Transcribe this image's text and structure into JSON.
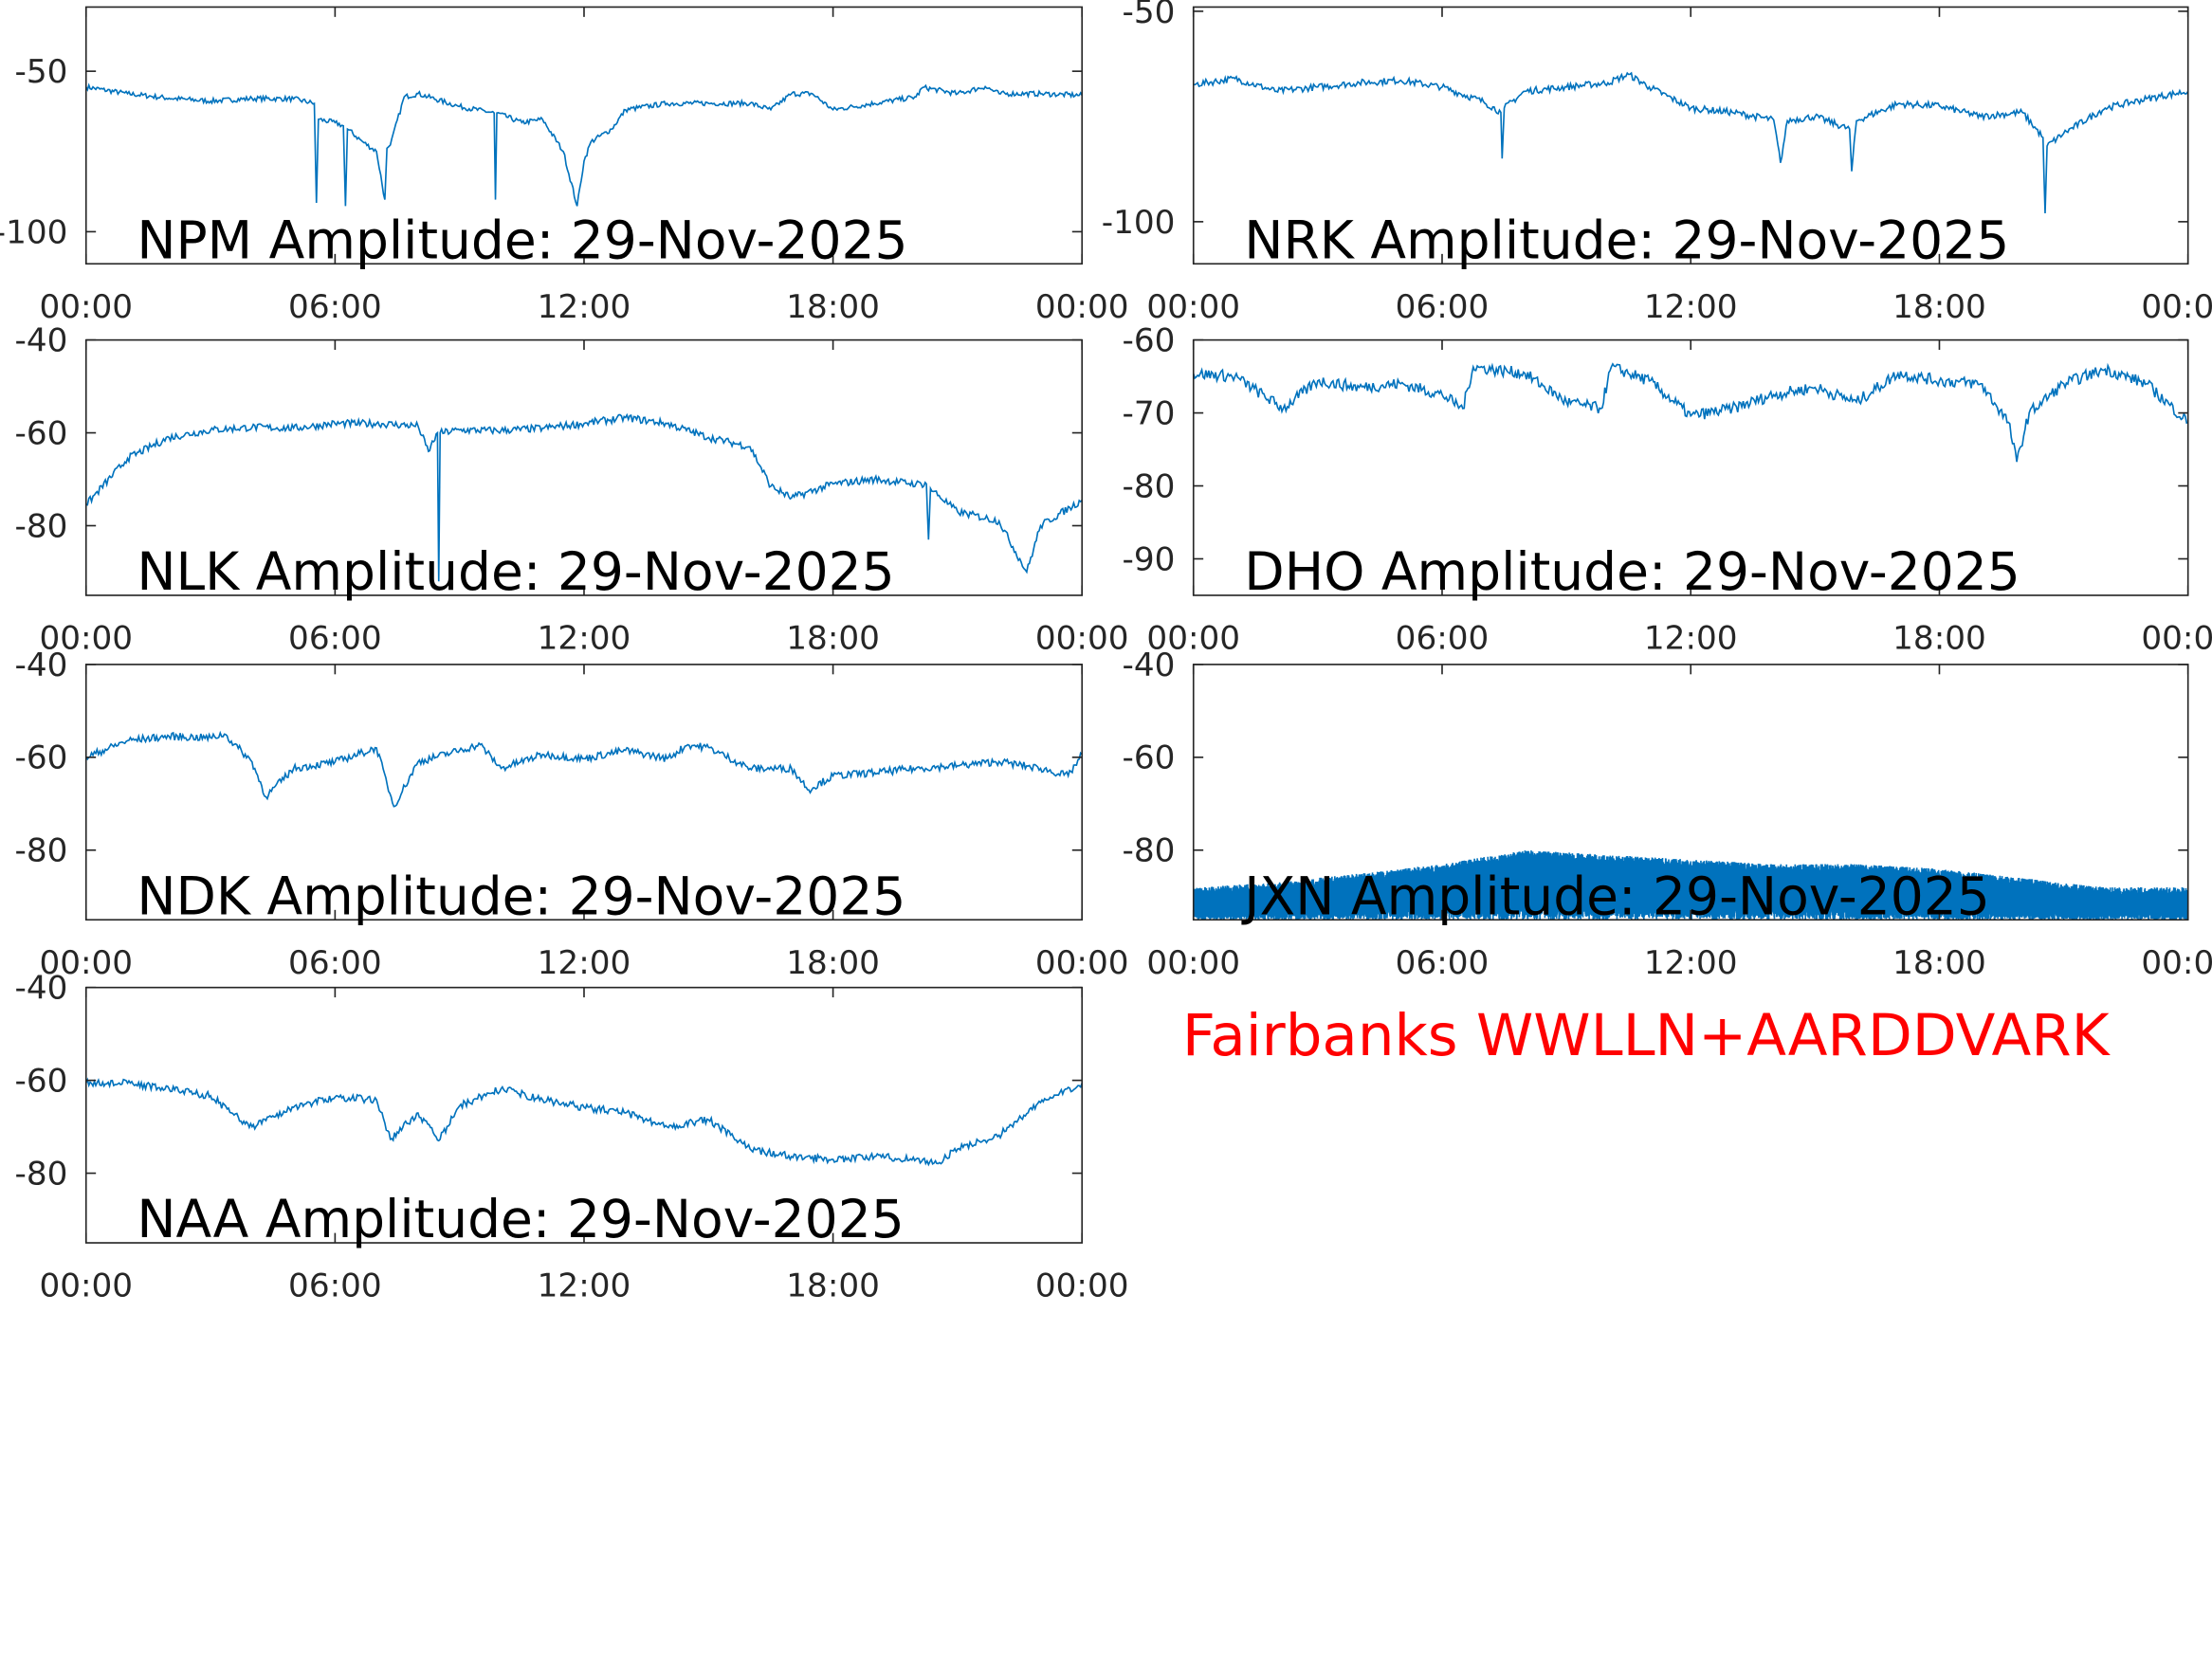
{
  "caption": {
    "text": "Fairbanks WWLLN+AARDDVARK",
    "color": "#ff0000"
  },
  "line_color": "#0072bd",
  "chart_data": [
    {
      "type": "line",
      "title": "NPM Amplitude: 29-Nov-2025",
      "xlim": [
        "00:00",
        "24:00"
      ],
      "ylim": [
        -110,
        -30
      ],
      "xticks": [
        "00:00",
        "06:00",
        "12:00",
        "18:00",
        "00:00"
      ],
      "yticks": [
        {
          "value": -50,
          "label": "-50"
        },
        {
          "value": -100,
          "label": "-100"
        }
      ],
      "x": [
        "00:00",
        "01:00",
        "02:00",
        "03:00",
        "04:00",
        "05:00",
        "05:30",
        "05:33",
        "05:36",
        "06:00",
        "06:12",
        "06:15",
        "06:18",
        "06:40",
        "07:00",
        "07:12",
        "07:15",
        "07:20",
        "07:40",
        "08:00",
        "09:00",
        "09:50",
        "09:52",
        "09:54",
        "10:30",
        "11:00",
        "11:30",
        "11:50",
        "12:00",
        "12:10",
        "12:40",
        "13:00",
        "14:00",
        "15:00",
        "16:00",
        "16:30",
        "17:00",
        "17:30",
        "18:00",
        "19:00",
        "20:00",
        "20:10",
        "21:00",
        "21:40",
        "22:00",
        "23:00",
        "24:00"
      ],
      "y": [
        -54.9,
        -57,
        -58.4,
        -59.3,
        -58.5,
        -58.6,
        -60,
        -91,
        -65,
        -66,
        -67,
        -92,
        -68,
        -72,
        -75,
        -90,
        -74,
        -73,
        -58,
        -57,
        -61,
        -63,
        -90,
        -63,
        -66,
        -65,
        -75,
        -92,
        -78,
        -72,
        -68,
        -62,
        -60,
        -60,
        -60,
        -62,
        -57,
        -57,
        -62,
        -60,
        -58,
        -55,
        -57,
        -54.8,
        -57,
        -57,
        -57.5
      ]
    },
    {
      "type": "line",
      "title": "NRK Amplitude: 29-Nov-2025",
      "xlim": [
        "00:00",
        "24:00"
      ],
      "ylim": [
        -110,
        -49
      ],
      "xticks": [
        "00:00",
        "06:00",
        "12:00",
        "18:00",
        "00:00"
      ],
      "yticks": [
        {
          "value": -50,
          "label": "-50"
        },
        {
          "value": -100,
          "label": "-100"
        }
      ],
      "x": [
        "00:00",
        "01:00",
        "02:00",
        "03:00",
        "04:00",
        "05:00",
        "06:00",
        "07:00",
        "07:25",
        "07:27",
        "07:30",
        "08:00",
        "09:00",
        "10:00",
        "10:30",
        "11:00",
        "12:00",
        "13:00",
        "14:00",
        "14:10",
        "14:20",
        "15:00",
        "15:50",
        "15:53",
        "16:00",
        "17:00",
        "18:00",
        "19:00",
        "20:00",
        "20:30",
        "20:33",
        "20:36",
        "21:00",
        "22:00",
        "23:00",
        "24:00"
      ],
      "y": [
        -67.4,
        -66,
        -69,
        -68,
        -67,
        -66.4,
        -68,
        -71.5,
        -74,
        -85,
        -73,
        -69,
        -68,
        -67,
        -65,
        -68,
        -73,
        -74,
        -75.8,
        -86,
        -76,
        -75,
        -78,
        -88,
        -76,
        -72,
        -72.5,
        -75,
        -74,
        -80,
        -98,
        -82,
        -79,
        -73,
        -70.8,
        -69
      ]
    },
    {
      "type": "line",
      "title": "NLK Amplitude: 29-Nov-2025",
      "xlim": [
        "00:00",
        "24:00"
      ],
      "ylim": [
        -95,
        -40
      ],
      "xticks": [
        "00:00",
        "06:00",
        "12:00",
        "18:00",
        "00:00"
      ],
      "yticks": [
        {
          "value": -40,
          "label": "-40"
        },
        {
          "value": -60,
          "label": "-60"
        },
        {
          "value": -80,
          "label": "-80"
        }
      ],
      "x": [
        "00:00",
        "01:00",
        "02:00",
        "03:00",
        "04:00",
        "05:00",
        "06:00",
        "07:00",
        "08:00",
        "08:15",
        "08:28",
        "08:30",
        "08:32",
        "09:00",
        "10:00",
        "11:00",
        "12:00",
        "13:00",
        "14:00",
        "15:00",
        "15:30",
        "16:00",
        "16:30",
        "17:00",
        "18:00",
        "19:00",
        "20:00",
        "20:15",
        "20:18",
        "20:21",
        "21:00",
        "22:00",
        "22:40",
        "23:00",
        "24:00"
      ],
      "y": [
        -75.5,
        -65.5,
        -61,
        -59.4,
        -58.8,
        -59,
        -58,
        -58,
        -58.5,
        -64,
        -60,
        -92,
        -60,
        -59.4,
        -59.5,
        -59,
        -58,
        -56.7,
        -58,
        -61,
        -62,
        -63,
        -71.5,
        -74,
        -71,
        -70,
        -71,
        -71,
        -83,
        -72,
        -77,
        -79,
        -90,
        -80,
        -74.5
      ]
    },
    {
      "type": "line",
      "title": "DHO Amplitude: 29-Nov-2025",
      "xlim": [
        "00:00",
        "24:00"
      ],
      "ylim": [
        -95,
        -60
      ],
      "xticks": [
        "00:00",
        "06:00",
        "12:00",
        "18:00",
        "00:00"
      ],
      "yticks": [
        {
          "value": -60,
          "label": "-60"
        },
        {
          "value": -70,
          "label": "-70"
        },
        {
          "value": -80,
          "label": "-80"
        },
        {
          "value": -90,
          "label": "-90"
        }
      ],
      "x": [
        "00:00",
        "01:00",
        "02:10",
        "03:00",
        "04:00",
        "05:00",
        "06:00",
        "06:30",
        "06:45",
        "08:00",
        "09:00",
        "09:50",
        "10:05",
        "11:00",
        "12:00",
        "13:00",
        "14:00",
        "15:00",
        "16:00",
        "17:00",
        "18:00",
        "19:00",
        "19:40",
        "19:52",
        "20:10",
        "21:00",
        "22:00",
        "23:00",
        "24:00"
      ],
      "y": [
        -64.6,
        -65,
        -69.4,
        -65.6,
        -66.5,
        -66,
        -67.5,
        -69.4,
        -63.7,
        -64.6,
        -68.5,
        -69.4,
        -63.7,
        -65.6,
        -70.4,
        -69.4,
        -67.5,
        -66.5,
        -68.5,
        -64.6,
        -65.6,
        -66,
        -71.3,
        -76.7,
        -70,
        -66,
        -64,
        -66,
        -71.3
      ]
    },
    {
      "type": "line",
      "title": "NDK Amplitude: 29-Nov-2025",
      "xlim": [
        "00:00",
        "24:00"
      ],
      "ylim": [
        -95,
        -40
      ],
      "xticks": [
        "00:00",
        "06:00",
        "12:00",
        "18:00",
        "00:00"
      ],
      "yticks": [
        {
          "value": -40,
          "label": "-40"
        },
        {
          "value": -60,
          "label": "-60"
        },
        {
          "value": -80,
          "label": "-80"
        }
      ],
      "x": [
        "00:00",
        "01:00",
        "02:00",
        "03:00",
        "03:20",
        "04:00",
        "04:20",
        "05:00",
        "06:00",
        "07:00",
        "07:25",
        "08:00",
        "09:00",
        "09:30",
        "10:00",
        "11:00",
        "12:00",
        "13:00",
        "14:00",
        "14:30",
        "15:00",
        "16:00",
        "17:00",
        "17:25",
        "18:00",
        "19:00",
        "20:00",
        "21:00",
        "22:00",
        "23:00",
        "23:40",
        "24:00"
      ],
      "y": [
        -60,
        -56.4,
        -55.5,
        -55.8,
        -55,
        -61,
        -68.5,
        -62.4,
        -61,
        -58,
        -70.6,
        -61,
        -58.5,
        -57.3,
        -62.4,
        -59.4,
        -60.3,
        -58.5,
        -60.3,
        -57.3,
        -57.9,
        -62.4,
        -62.4,
        -67,
        -64,
        -63.3,
        -62.4,
        -61.8,
        -60.9,
        -62.4,
        -64,
        -59.4
      ]
    },
    {
      "type": "area",
      "title": "JXN Amplitude: 29-Nov-2025",
      "xlim": [
        "00:00",
        "24:00"
      ],
      "ylim": [
        -95,
        -40
      ],
      "xticks": [
        "00:00",
        "06:00",
        "12:00",
        "18:00",
        "00:00"
      ],
      "yticks": [
        {
          "value": -40,
          "label": "-40"
        },
        {
          "value": -60,
          "label": "-60"
        },
        {
          "value": -80,
          "label": "-80"
        }
      ],
      "x": [
        "00:00",
        "02:00",
        "04:00",
        "06:00",
        "08:00",
        "10:00",
        "12:00",
        "14:00",
        "16:00",
        "18:00",
        "20:00",
        "22:00",
        "24:00"
      ],
      "y_upper": [
        -90,
        -89,
        -87,
        -85,
        -82,
        -83,
        -84,
        -85,
        -85,
        -86,
        -88,
        -90,
        -90
      ],
      "y_lower": [
        -95,
        -95,
        -95,
        -95,
        -95,
        -95,
        -95,
        -95,
        -95,
        -95,
        -95,
        -95,
        -95
      ]
    },
    {
      "type": "line",
      "title": "NAA Amplitude: 29-Nov-2025",
      "xlim": [
        "00:00",
        "24:00"
      ],
      "ylim": [
        -95,
        -40
      ],
      "xticks": [
        "00:00",
        "06:00",
        "12:00",
        "18:00",
        "00:00"
      ],
      "yticks": [
        {
          "value": -40,
          "label": "-40"
        },
        {
          "value": -60,
          "label": "-60"
        },
        {
          "value": -80,
          "label": "-80"
        }
      ],
      "x": [
        "00:00",
        "01:00",
        "02:00",
        "03:00",
        "03:30",
        "04:00",
        "05:00",
        "06:00",
        "07:00",
        "07:20",
        "08:00",
        "08:30",
        "09:00",
        "10:00",
        "11:00",
        "12:00",
        "13:00",
        "14:00",
        "15:00",
        "16:00",
        "17:00",
        "18:00",
        "19:00",
        "20:00",
        "20:30",
        "21:00",
        "22:00",
        "23:00",
        "24:00"
      ],
      "y": [
        -60.6,
        -60.6,
        -61.8,
        -63.3,
        -67,
        -70,
        -65.8,
        -63.6,
        -64.2,
        -72.7,
        -67,
        -73,
        -65.5,
        -61.8,
        -64.2,
        -65.8,
        -67,
        -70,
        -68.5,
        -74.8,
        -76.4,
        -77,
        -76.4,
        -77,
        -77.9,
        -74.8,
        -71.8,
        -64.8,
        -60.6
      ]
    }
  ]
}
